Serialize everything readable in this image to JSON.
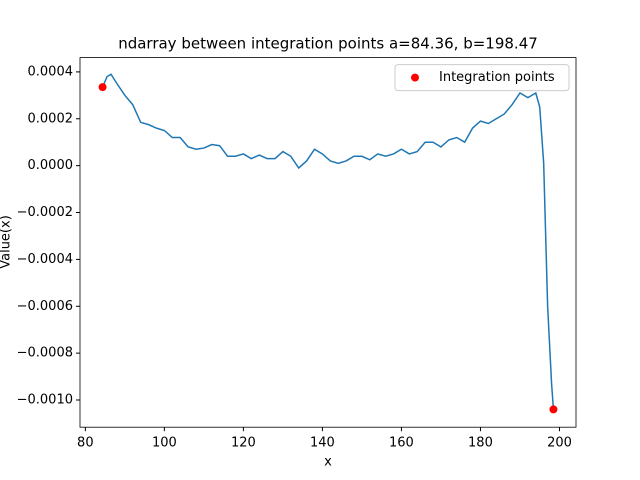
{
  "chart_data": {
    "type": "line",
    "title": "ndarray between integration points a=84.36, b=198.47",
    "xlabel": "x",
    "ylabel": "Value(x)",
    "xlim": [
      78.65,
      204.18
    ],
    "ylim": [
      -0.001116,
      0.000461
    ],
    "xticks": [
      80,
      100,
      120,
      140,
      160,
      180,
      200
    ],
    "yticks": [
      {
        "value": -0.001,
        "label": "−0.0010"
      },
      {
        "value": -0.0008,
        "label": "−0.0008"
      },
      {
        "value": -0.0006,
        "label": "−0.0006"
      },
      {
        "value": -0.0004,
        "label": "−0.0004"
      },
      {
        "value": -0.0002,
        "label": "−0.0002"
      },
      {
        "value": 0,
        "label": "0.0000"
      },
      {
        "value": 0.0002,
        "label": "0.0002"
      },
      {
        "value": 0.0004,
        "label": "0.0004"
      }
    ],
    "legend": "upper right",
    "series": [
      {
        "color": "#1f77b4",
        "x": [
          84.36,
          85.5,
          86.5,
          88,
          90,
          92,
          94,
          96,
          98,
          100,
          102,
          104,
          106,
          108,
          110,
          112,
          114,
          116,
          118,
          120,
          122,
          124,
          126,
          128,
          130,
          132,
          134,
          136,
          138,
          140,
          142,
          144,
          146,
          148,
          150,
          152,
          154,
          156,
          158,
          160,
          162,
          164,
          166,
          168,
          170,
          172,
          174,
          176,
          178,
          180,
          182,
          184,
          186,
          188,
          190,
          192,
          194,
          195,
          196,
          197,
          198,
          198.47
        ],
        "values": [
          0.000335,
          0.00038,
          0.00039,
          0.00035,
          0.0003,
          0.00026,
          0.000185,
          0.000175,
          0.00016,
          0.00015,
          0.00012,
          0.00012,
          8e-05,
          7e-05,
          7.5e-05,
          9e-05,
          8.5e-05,
          4e-05,
          4e-05,
          5e-05,
          3e-05,
          4.5e-05,
          3e-05,
          3e-05,
          6e-05,
          4e-05,
          -1e-05,
          2e-05,
          7e-05,
          5e-05,
          2e-05,
          1e-05,
          2e-05,
          4e-05,
          4e-05,
          2.5e-05,
          5e-05,
          4e-05,
          5e-05,
          7e-05,
          5e-05,
          6e-05,
          0.0001,
          0.0001,
          8e-05,
          0.00011,
          0.00012,
          0.0001,
          0.00016,
          0.00019,
          0.00018,
          0.0002,
          0.00022,
          0.00026,
          0.00031,
          0.00029,
          0.00031,
          0.00025,
          1e-05,
          -0.0006,
          -0.00093,
          -0.00104
        ]
      },
      {
        "name": "Integration points",
        "type": "scatter",
        "color": "#ff0000",
        "x": [
          84.36,
          198.47
        ],
        "values": [
          0.000335,
          -0.00104
        ]
      }
    ]
  }
}
